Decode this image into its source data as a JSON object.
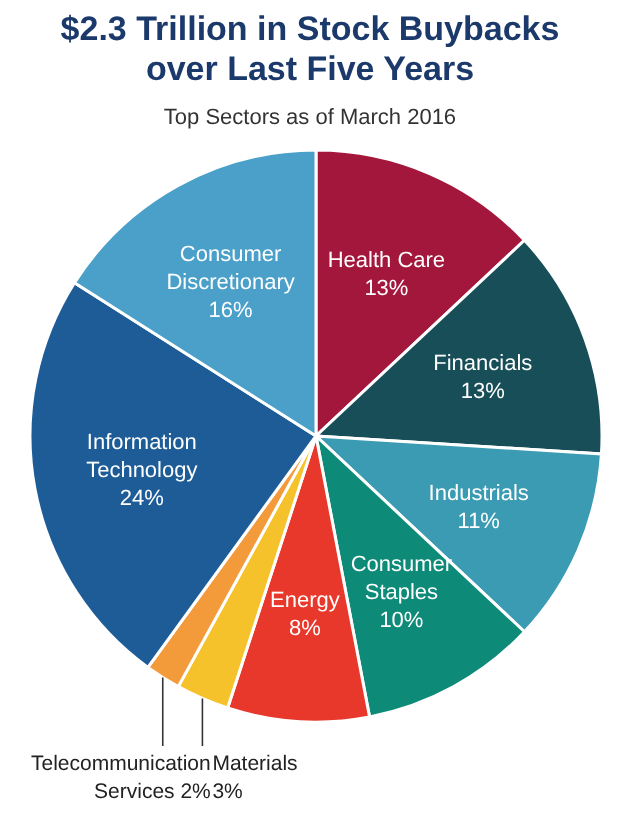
{
  "chart_data": {
    "type": "pie",
    "title": "$2.3 Trillion in Stock Buybacks over Last Five Years",
    "subtitle": "Top Sectors as of March 2016",
    "categories": [
      "Health Care",
      "Financials",
      "Industrials",
      "Consumer Staples",
      "Energy",
      "Materials",
      "Telecommunication Services",
      "Information Technology",
      "Consumer Discretionary"
    ],
    "values": [
      13,
      13,
      11,
      10,
      8,
      3,
      2,
      24,
      16
    ],
    "value_labels": [
      "13%",
      "13%",
      "11%",
      "10%",
      "8%",
      "3%",
      "2%",
      "24%",
      "16%"
    ],
    "colors": [
      "#a3173d",
      "#174e57",
      "#3a9bb3",
      "#0e8a78",
      "#e8372b",
      "#f5c22b",
      "#f39b3b",
      "#1e5c98",
      "#4aa0c9"
    ]
  }
}
